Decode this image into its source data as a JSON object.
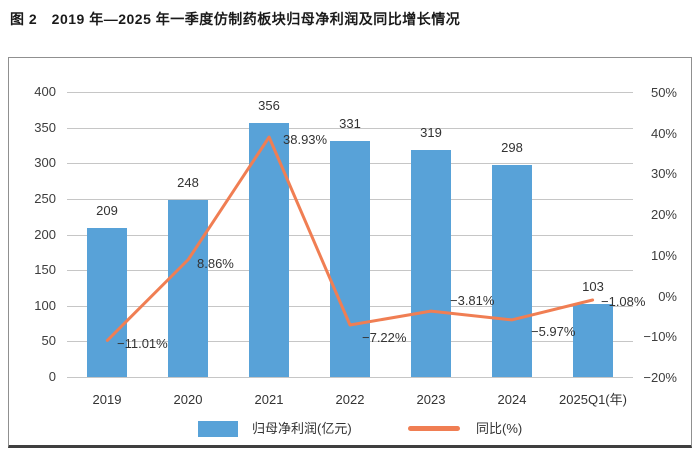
{
  "title": "图 2　2019 年—2025 年一季度仿制药板块归母净利润及同比增长情况",
  "legend": {
    "bar": "归母净利润(亿元)",
    "line": "同比(%)"
  },
  "colors": {
    "bar": "#58A2D8",
    "line": "#F07E53",
    "grid": "#c6c6c6",
    "axis_text": "#3d3d3d",
    "label_text": "#333333",
    "border": "#909090",
    "border_bottom": "#3f3f3f"
  },
  "chart_data": {
    "type": "bar",
    "subtype": "bar+line dual axis",
    "title": "图 2　2019 年—2025 年一季度仿制药板块归母净利润及同比增长情况",
    "categories": [
      "2019",
      "2020",
      "2021",
      "2022",
      "2023",
      "2024",
      "2025Q1(年)"
    ],
    "series": [
      {
        "name": "归母净利润(亿元)",
        "type": "bar",
        "axis": "left",
        "values": [
          209,
          248,
          356,
          331,
          319,
          298,
          103
        ],
        "labels": [
          "209",
          "248",
          "356",
          "331",
          "319",
          "298",
          "103"
        ],
        "color": "#58A2D8"
      },
      {
        "name": "同比(%)",
        "type": "line",
        "axis": "right",
        "values": [
          -11.01,
          8.86,
          38.93,
          -7.22,
          -3.81,
          -5.97,
          -1.08
        ],
        "labels": [
          "−11.01%",
          "8.86%",
          "38.93%",
          "−7.22%",
          "−3.81%",
          "−5.97%",
          "−1.08%"
        ],
        "color": "#F07E53"
      }
    ],
    "left_axis": {
      "min": 0,
      "max": 400,
      "step": 50,
      "ticks_top_to_bottom": [
        "400",
        "350",
        "300",
        "250",
        "200",
        "150",
        "100",
        "50",
        "0"
      ]
    },
    "right_axis": {
      "min": -20,
      "max": 50,
      "step": 10,
      "ticks_top_to_bottom": [
        "50%",
        "40%",
        "30%",
        "20%",
        "10%",
        "0%",
        "−10%",
        "−20%"
      ]
    },
    "grid": true,
    "legend_position": "bottom",
    "xlabel": "",
    "ylabel": ""
  }
}
